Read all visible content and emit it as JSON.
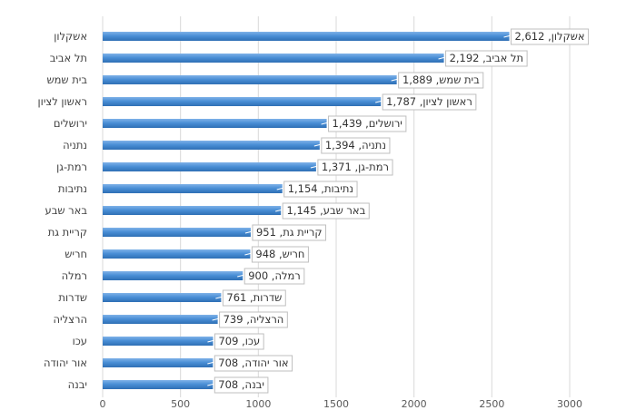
{
  "chart_data": {
    "type": "bar",
    "orientation": "horizontal",
    "title": "",
    "xlabel": "",
    "ylabel": "",
    "categories": [
      "אשקלון",
      "תל אביב",
      "בית שמש",
      "ראשון לציון",
      "ירושלים",
      "נתניה",
      "רמת-גן",
      "נתיבות",
      "באר שבע",
      "קריית גת",
      "חריש",
      "רמלה",
      "שדרות",
      "הרצליה",
      "עכו",
      "אור יהודה",
      "יבנה"
    ],
    "values": [
      2612,
      2192,
      1889,
      1787,
      1439,
      1394,
      1371,
      1154,
      1145,
      951,
      948,
      900,
      761,
      739,
      709,
      708,
      708
    ],
    "data_labels": [
      "אשקלון, 2,612",
      "תל אביב, 2,192",
      "בית שמש, 1,889",
      "ראשון לציון, 1,787",
      "ירושלים, 1,439",
      "נתניה, 1,394",
      "רמת-גן, 1,371",
      "נתיבות, 1,154",
      "באר שבע, 1,145",
      "קריית גת, 951",
      "חריש, 948",
      "רמלה, 900",
      "שדרות, 761",
      "הרצליה, 739",
      "עכו, 709",
      "אור יהודה, 708",
      "יבנה, 708"
    ],
    "xlim": [
      0,
      3000
    ],
    "xticks": [
      "0",
      "500",
      "1000",
      "1500",
      "2000",
      "2500",
      "3000"
    ],
    "grid": "vertical",
    "legend": "none",
    "bar_color": "#4a8fd6"
  }
}
